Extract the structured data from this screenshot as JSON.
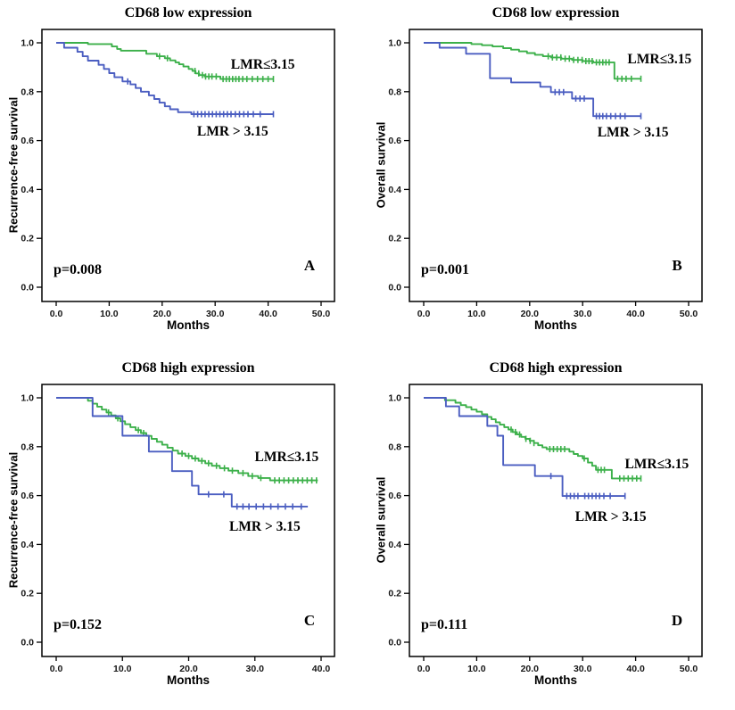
{
  "figure": {
    "background": "#ffffff",
    "green": "#3cb04a",
    "blue": "#4b5ec1"
  },
  "chart_data": [
    {
      "type": "km",
      "letter": "A",
      "title": "CD68 low expression",
      "xlabel": "Months",
      "ylabel": "Recurrence-free survival",
      "p_value": "p=0.008",
      "xmax": 50,
      "ylim": [
        0,
        1
      ],
      "xtick_values": [
        0,
        10,
        20,
        30,
        40,
        50
      ],
      "xtick_labels": [
        "0.0",
        "10.0",
        "20.0",
        "30.0",
        "40.0",
        "50.0"
      ],
      "ytick_values": [
        0,
        0.2,
        0.4,
        0.6,
        0.8,
        1
      ],
      "ytick_labels": [
        "0.0",
        "0.2",
        "0.4",
        "0.6",
        "0.8",
        "1.0"
      ],
      "series": [
        {
          "label": "LMR≤3.15",
          "color": "#3cb04a",
          "start": 1.0,
          "end": 41,
          "drops": [
            [
              6,
              0.995
            ],
            [
              10.5,
              0.985
            ],
            [
              11.5,
              0.975
            ],
            [
              12.2,
              0.968
            ],
            [
              17,
              0.955
            ],
            [
              19,
              0.945
            ],
            [
              20.5,
              0.937
            ],
            [
              21.5,
              0.928
            ],
            [
              22.5,
              0.92
            ],
            [
              23.2,
              0.912
            ],
            [
              24,
              0.903
            ],
            [
              25,
              0.893
            ],
            [
              25.7,
              0.885
            ],
            [
              26.3,
              0.875
            ],
            [
              27,
              0.868
            ],
            [
              28,
              0.862
            ],
            [
              31,
              0.852
            ]
          ],
          "censors": [
            19.5,
            21,
            26.2,
            26.9,
            27.6,
            28.2,
            28.8,
            29.4,
            30.2,
            31.5,
            32.1,
            32.7,
            33.3,
            33.9,
            34.5,
            35.2,
            36,
            37,
            38,
            39,
            40,
            41
          ],
          "label_at": [
            39,
            0.91
          ]
        },
        {
          "label": "LMR > 3.15",
          "color": "#4b5ec1",
          "start": 1.0,
          "end": 41,
          "drops": [
            [
              1.5,
              0.98
            ],
            [
              4,
              0.963
            ],
            [
              5,
              0.945
            ],
            [
              6,
              0.927
            ],
            [
              8,
              0.91
            ],
            [
              9,
              0.893
            ],
            [
              10,
              0.876
            ],
            [
              11,
              0.859
            ],
            [
              12.5,
              0.842
            ],
            [
              14,
              0.83
            ],
            [
              15,
              0.815
            ],
            [
              16,
              0.8
            ],
            [
              17.5,
              0.785
            ],
            [
              18.5,
              0.77
            ],
            [
              19.5,
              0.755
            ],
            [
              20.5,
              0.74
            ],
            [
              21.5,
              0.728
            ],
            [
              23,
              0.716
            ],
            [
              25.5,
              0.708
            ]
          ],
          "censors": [
            13.5,
            26,
            26.7,
            27.4,
            28.1,
            28.8,
            29.5,
            30.2,
            30.9,
            31.6,
            32.3,
            33,
            33.8,
            34.6,
            35.4,
            36.2,
            37.2,
            38.5,
            41
          ],
          "label_at": [
            33.3,
            0.635
          ]
        }
      ]
    },
    {
      "type": "km",
      "letter": "B",
      "title": "CD68 low expression",
      "xlabel": "Months",
      "ylabel": "Overall survival",
      "p_value": "p=0.001",
      "xmax": 50,
      "ylim": [
        0,
        1
      ],
      "xtick_values": [
        0,
        10,
        20,
        30,
        40,
        50
      ],
      "xtick_labels": [
        "0.0",
        "10.0",
        "20.0",
        "30.0",
        "40.0",
        "50.0"
      ],
      "ytick_values": [
        0,
        0.2,
        0.4,
        0.6,
        0.8,
        1
      ],
      "ytick_labels": [
        "0.0",
        "0.2",
        "0.4",
        "0.6",
        "0.8",
        "1.0"
      ],
      "series": [
        {
          "label": "LMR≤3.15",
          "color": "#3cb04a",
          "start": 1.0,
          "end": 41,
          "drops": [
            [
              9,
              0.995
            ],
            [
              11,
              0.99
            ],
            [
              13,
              0.985
            ],
            [
              15,
              0.978
            ],
            [
              16.5,
              0.972
            ],
            [
              18,
              0.965
            ],
            [
              19.5,
              0.958
            ],
            [
              21,
              0.951
            ],
            [
              22.5,
              0.945
            ],
            [
              24,
              0.94
            ],
            [
              26,
              0.935
            ],
            [
              28,
              0.93
            ],
            [
              30,
              0.925
            ],
            [
              32,
              0.92
            ],
            [
              36,
              0.853
            ]
          ],
          "censors": [
            23.5,
            24.3,
            25.1,
            25.9,
            26.7,
            27.5,
            28.3,
            29.1,
            29.9,
            30.6,
            31.2,
            31.8,
            32.6,
            33.2,
            33.8,
            34.4,
            35,
            36.6,
            37.4,
            38.2,
            39.2,
            41
          ],
          "label_at": [
            44.5,
            0.932
          ]
        },
        {
          "label": "LMR > 3.15",
          "color": "#4b5ec1",
          "start": 1.0,
          "end": 41,
          "drops": [
            [
              3,
              0.98
            ],
            [
              8,
              0.955
            ],
            [
              12.5,
              0.855
            ],
            [
              16.5,
              0.838
            ],
            [
              22,
              0.82
            ],
            [
              24,
              0.798
            ],
            [
              28,
              0.772
            ],
            [
              32,
              0.7
            ]
          ],
          "censors": [
            24.8,
            25.6,
            26.4,
            28.7,
            29.5,
            30.3,
            32.6,
            33.2,
            33.8,
            34.5,
            35.3,
            36.2,
            37.1,
            38,
            41
          ],
          "label_at": [
            39.5,
            0.63
          ]
        }
      ]
    },
    {
      "type": "km",
      "letter": "C",
      "title": "CD68 high expression",
      "xlabel": "Months",
      "ylabel": "Recurrence-free survival",
      "p_value": "p=0.152",
      "xmax": 40,
      "ylim": [
        0,
        1
      ],
      "xtick_values": [
        0,
        10,
        20,
        30,
        40
      ],
      "xtick_labels": [
        "0.0",
        "10.0",
        "20.0",
        "30.0",
        "40.0"
      ],
      "ytick_values": [
        0,
        0.2,
        0.4,
        0.6,
        0.8,
        1
      ],
      "ytick_labels": [
        "0.0",
        "0.2",
        "0.4",
        "0.6",
        "0.8",
        "1.0"
      ],
      "series": [
        {
          "label": "LMR≤3.15",
          "color": "#3cb04a",
          "start": 1.0,
          "end": 39.5,
          "drops": [
            [
              4.8,
              0.988
            ],
            [
              5.5,
              0.976
            ],
            [
              6.2,
              0.964
            ],
            [
              6.9,
              0.952
            ],
            [
              7.6,
              0.94
            ],
            [
              8.3,
              0.928
            ],
            [
              9,
              0.916
            ],
            [
              9.7,
              0.904
            ],
            [
              10.4,
              0.892
            ],
            [
              11.2,
              0.88
            ],
            [
              12,
              0.868
            ],
            [
              12.8,
              0.856
            ],
            [
              13.6,
              0.844
            ],
            [
              14.4,
              0.832
            ],
            [
              15.2,
              0.82
            ],
            [
              16,
              0.808
            ],
            [
              16.8,
              0.796
            ],
            [
              17.6,
              0.784
            ],
            [
              18.4,
              0.772
            ],
            [
              19.5,
              0.762
            ],
            [
              20.5,
              0.752
            ],
            [
              21.5,
              0.742
            ],
            [
              22.5,
              0.732
            ],
            [
              23.5,
              0.722
            ],
            [
              24.7,
              0.712
            ],
            [
              26,
              0.702
            ],
            [
              27.5,
              0.692
            ],
            [
              29,
              0.68
            ],
            [
              30.5,
              0.672
            ],
            [
              32.3,
              0.662
            ]
          ],
          "censors": [
            7.9,
            9.3,
            12.4,
            13.2,
            19,
            20,
            21,
            22,
            23,
            24.2,
            25.4,
            26.6,
            28.2,
            29.6,
            30.9,
            33,
            33.7,
            34.4,
            35.1,
            35.8,
            36.5,
            37.2,
            37.9,
            38.6,
            39.3
          ],
          "label_at": [
            34.8,
            0.755
          ]
        },
        {
          "label": "LMR > 3.15",
          "color": "#4b5ec1",
          "start": 1.0,
          "end": 38,
          "drops": [
            [
              5.5,
              0.925
            ],
            [
              10,
              0.845
            ],
            [
              14,
              0.78
            ],
            [
              17.5,
              0.7
            ],
            [
              20.5,
              0.64
            ],
            [
              21.5,
              0.605
            ],
            [
              26.5,
              0.555
            ]
          ],
          "censors": [
            23,
            25.3,
            27.3,
            28.2,
            29.1,
            30.2,
            31.3,
            32.4,
            33.5,
            34.6,
            35.7,
            37
          ],
          "label_at": [
            31.5,
            0.47
          ]
        }
      ]
    },
    {
      "type": "km",
      "letter": "D",
      "title": "CD68 high expression",
      "xlabel": "Months",
      "ylabel": "Overall survival",
      "p_value": "p=0.111",
      "xmax": 50,
      "ylim": [
        0,
        1
      ],
      "xtick_values": [
        0,
        10,
        20,
        30,
        40,
        50
      ],
      "xtick_labels": [
        "0.0",
        "10.0",
        "20.0",
        "30.0",
        "40.0",
        "50.0"
      ],
      "ytick_values": [
        0,
        0.2,
        0.4,
        0.6,
        0.8,
        1
      ],
      "ytick_labels": [
        "0.0",
        "0.2",
        "0.4",
        "0.6",
        "0.8",
        "1.0"
      ],
      "series": [
        {
          "label": "LMR≤3.15",
          "color": "#3cb04a",
          "start": 1.0,
          "end": 41,
          "drops": [
            [
              4,
              0.99
            ],
            [
              6,
              0.98
            ],
            [
              7,
              0.97
            ],
            [
              8,
              0.962
            ],
            [
              9,
              0.952
            ],
            [
              10,
              0.943
            ],
            [
              11,
              0.933
            ],
            [
              12,
              0.922
            ],
            [
              12.8,
              0.912
            ],
            [
              13.6,
              0.9
            ],
            [
              14.4,
              0.89
            ],
            [
              15.2,
              0.88
            ],
            [
              16,
              0.87
            ],
            [
              16.8,
              0.86
            ],
            [
              17.6,
              0.85
            ],
            [
              18.4,
              0.84
            ],
            [
              19.2,
              0.832
            ],
            [
              20,
              0.824
            ],
            [
              20.8,
              0.815
            ],
            [
              21.6,
              0.806
            ],
            [
              22.4,
              0.797
            ],
            [
              23.2,
              0.79
            ],
            [
              27.5,
              0.78
            ],
            [
              28.3,
              0.77
            ],
            [
              29.1,
              0.762
            ],
            [
              30,
              0.752
            ],
            [
              31,
              0.735
            ],
            [
              31.8,
              0.722
            ],
            [
              32.5,
              0.705
            ],
            [
              35.5,
              0.67
            ]
          ],
          "censors": [
            16.5,
            17.3,
            18.1,
            19.3,
            20.1,
            20.8,
            23.8,
            24.5,
            25.2,
            25.9,
            26.6,
            30.3,
            32.9,
            33.5,
            34.1,
            37,
            37.8,
            38.6,
            39.4,
            40.2,
            41
          ],
          "label_at": [
            44,
            0.725
          ]
        },
        {
          "label": "LMR > 3.15",
          "color": "#4b5ec1",
          "start": 1.0,
          "end": 38,
          "drops": [
            [
              4.2,
              0.965
            ],
            [
              6.7,
              0.925
            ],
            [
              12,
              0.885
            ],
            [
              13.9,
              0.845
            ],
            [
              15,
              0.725
            ],
            [
              21,
              0.68
            ],
            [
              26.2,
              0.598
            ]
          ],
          "censors": [
            24,
            27,
            27.7,
            28.4,
            29.1,
            30.4,
            31.1,
            31.8,
            32.5,
            33.2,
            34,
            35.2,
            38
          ],
          "label_at": [
            35.3,
            0.51
          ]
        }
      ]
    }
  ]
}
